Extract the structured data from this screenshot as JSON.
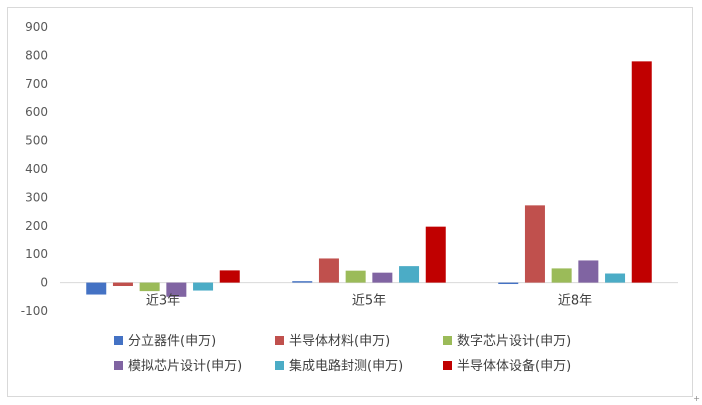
{
  "chart_data": {
    "type": "bar",
    "categories": [
      "近3年",
      "近5年",
      "近8年"
    ],
    "series": [
      {
        "name": "分立器件(申万)",
        "color": "#4472C4",
        "values": [
          -42,
          5,
          -5
        ]
      },
      {
        "name": "半导体材料(申万)",
        "color": "#C0504D",
        "values": [
          -12,
          85,
          272
        ]
      },
      {
        "name": "数字芯片设计(申万)",
        "color": "#9BBB59",
        "values": [
          -30,
          42,
          50
        ]
      },
      {
        "name": "模拟芯片设计(申万)",
        "color": "#8064A2",
        "values": [
          -50,
          35,
          78
        ]
      },
      {
        "name": "集成电路封测(申万)",
        "color": "#4BACC6",
        "values": [
          -28,
          58,
          32
        ]
      },
      {
        "name": "半导体体设备(申万)",
        "color": "#C00000",
        "values": [
          43,
          197,
          779
        ]
      }
    ],
    "yticks": [
      "-100",
      "0",
      "100",
      "200",
      "300",
      "400",
      "500",
      "600",
      "700",
      "800",
      "900"
    ],
    "ylim": [
      -100,
      900
    ],
    "grid": false,
    "legend_position": "bottom"
  }
}
